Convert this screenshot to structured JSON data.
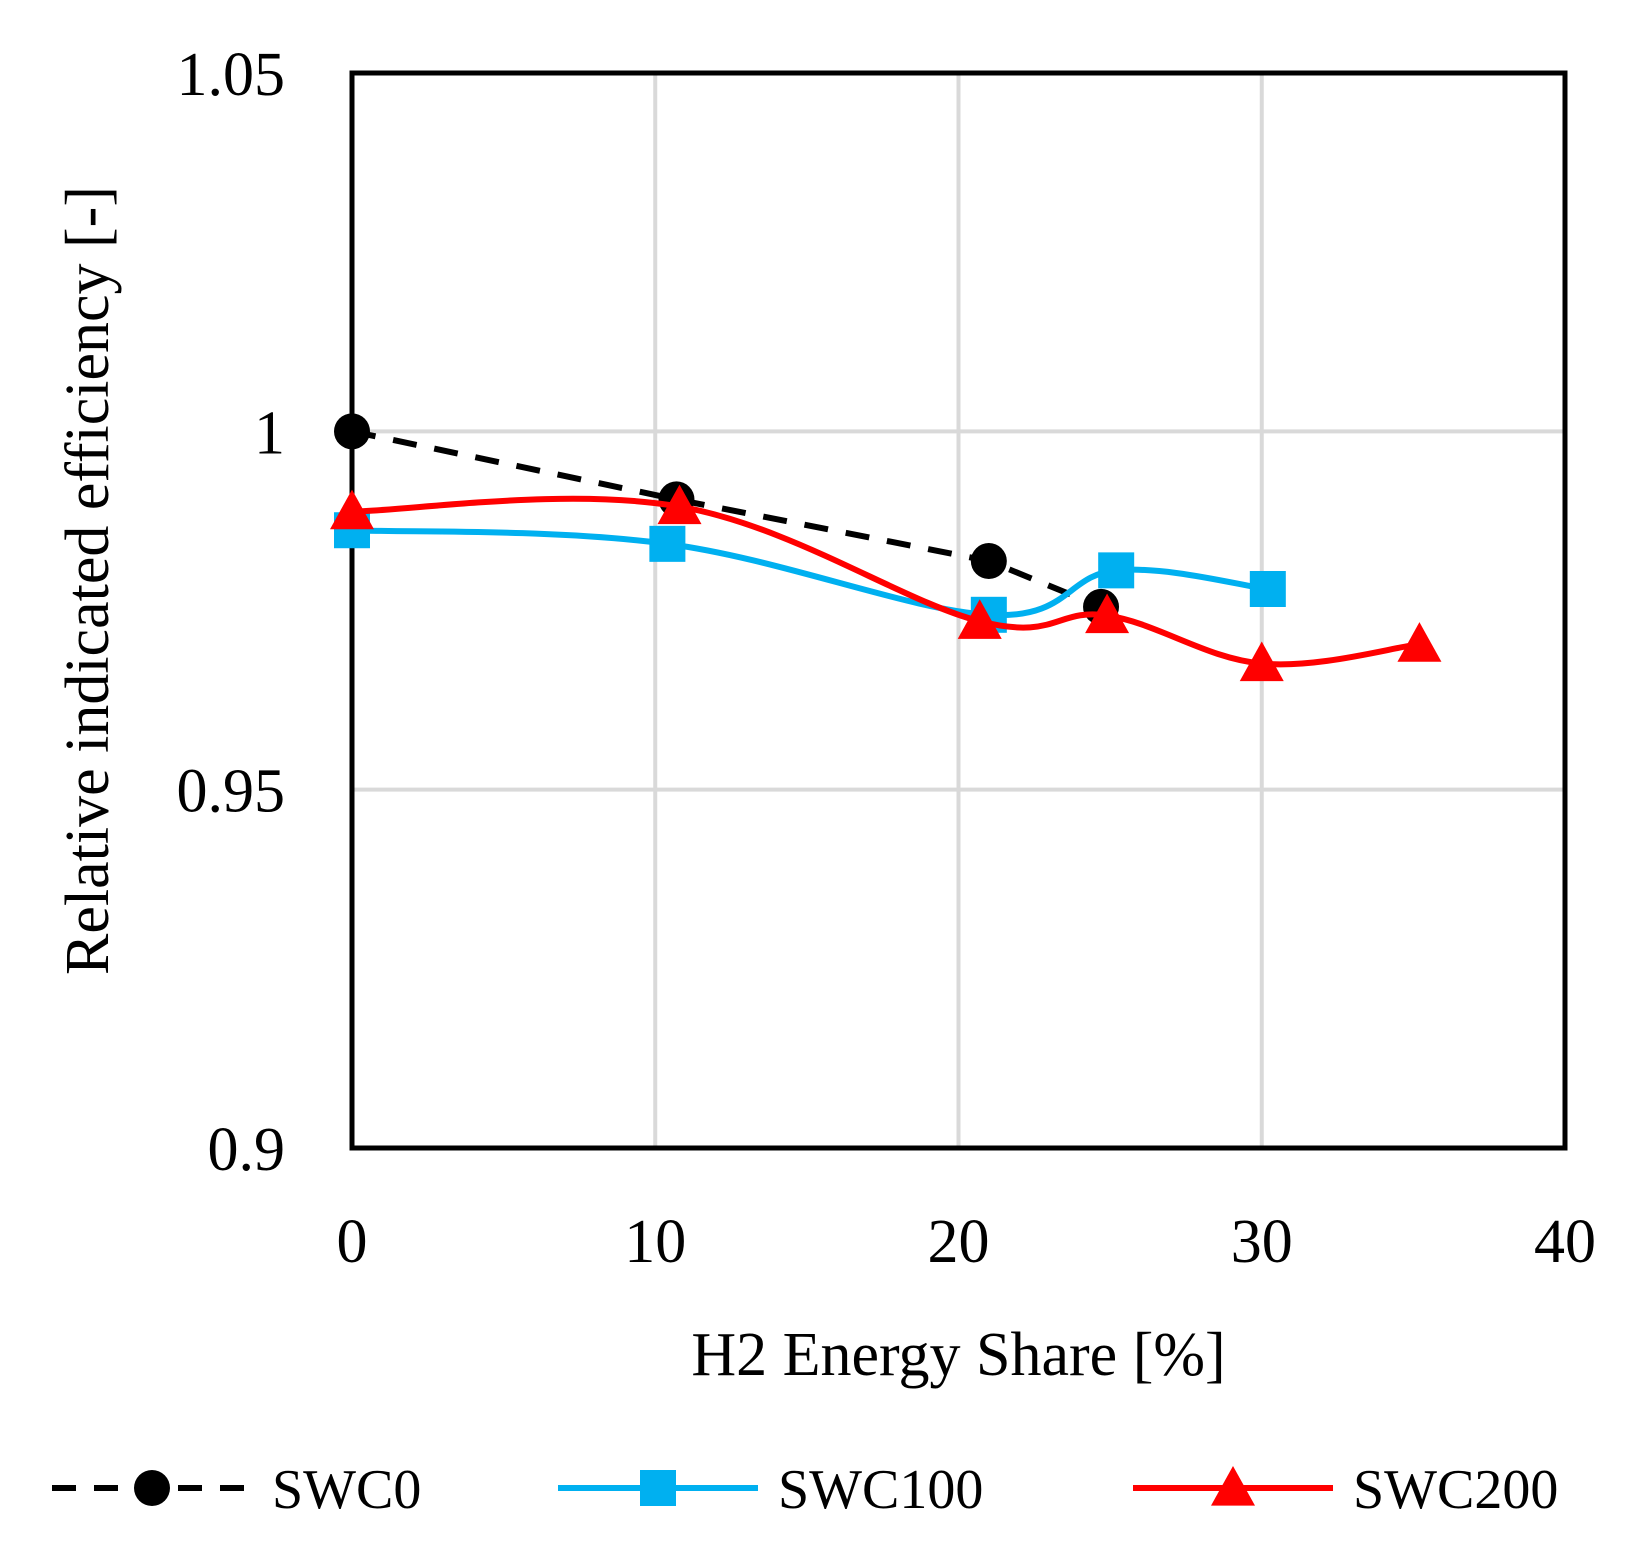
{
  "chart_data": {
    "type": "line",
    "title": "",
    "xlabel": "H2 Energy Share [%]",
    "ylabel": "Relative indicated efficiency [-]",
    "xlim": [
      0,
      40
    ],
    "ylim": [
      0.9,
      1.05
    ],
    "xticks": [
      0,
      10,
      20,
      30,
      40
    ],
    "xtick_labels": [
      "0",
      "10",
      "20",
      "30",
      "40"
    ],
    "yticks": [
      0.9,
      0.95,
      1.0,
      1.05
    ],
    "ytick_labels": [
      "0.9",
      "0.95",
      "1",
      "1.05"
    ],
    "grid": true,
    "legend_position": "bottom",
    "series": [
      {
        "name": "SWC0",
        "color": "#000000",
        "line": "dashed",
        "marker": "circle",
        "x": [
          0,
          10.7,
          21,
          24.7
        ],
        "y": [
          1.0,
          0.9905,
          0.9819,
          0.9755
        ]
      },
      {
        "name": "SWC100",
        "color": "#00B0F0",
        "line": "solid",
        "marker": "square",
        "x": [
          0,
          10.4,
          21,
          25.2,
          30.2
        ],
        "y": [
          0.9862,
          0.9843,
          0.9744,
          0.9806,
          0.978
        ]
      },
      {
        "name": "SWC200",
        "color": "#FF0000",
        "line": "solid",
        "marker": "triangle",
        "x": [
          0,
          10.8,
          20.7,
          24.9,
          30,
          35.2
        ],
        "y": [
          0.9888,
          0.9895,
          0.9735,
          0.9743,
          0.9676,
          0.9703
        ]
      }
    ]
  }
}
